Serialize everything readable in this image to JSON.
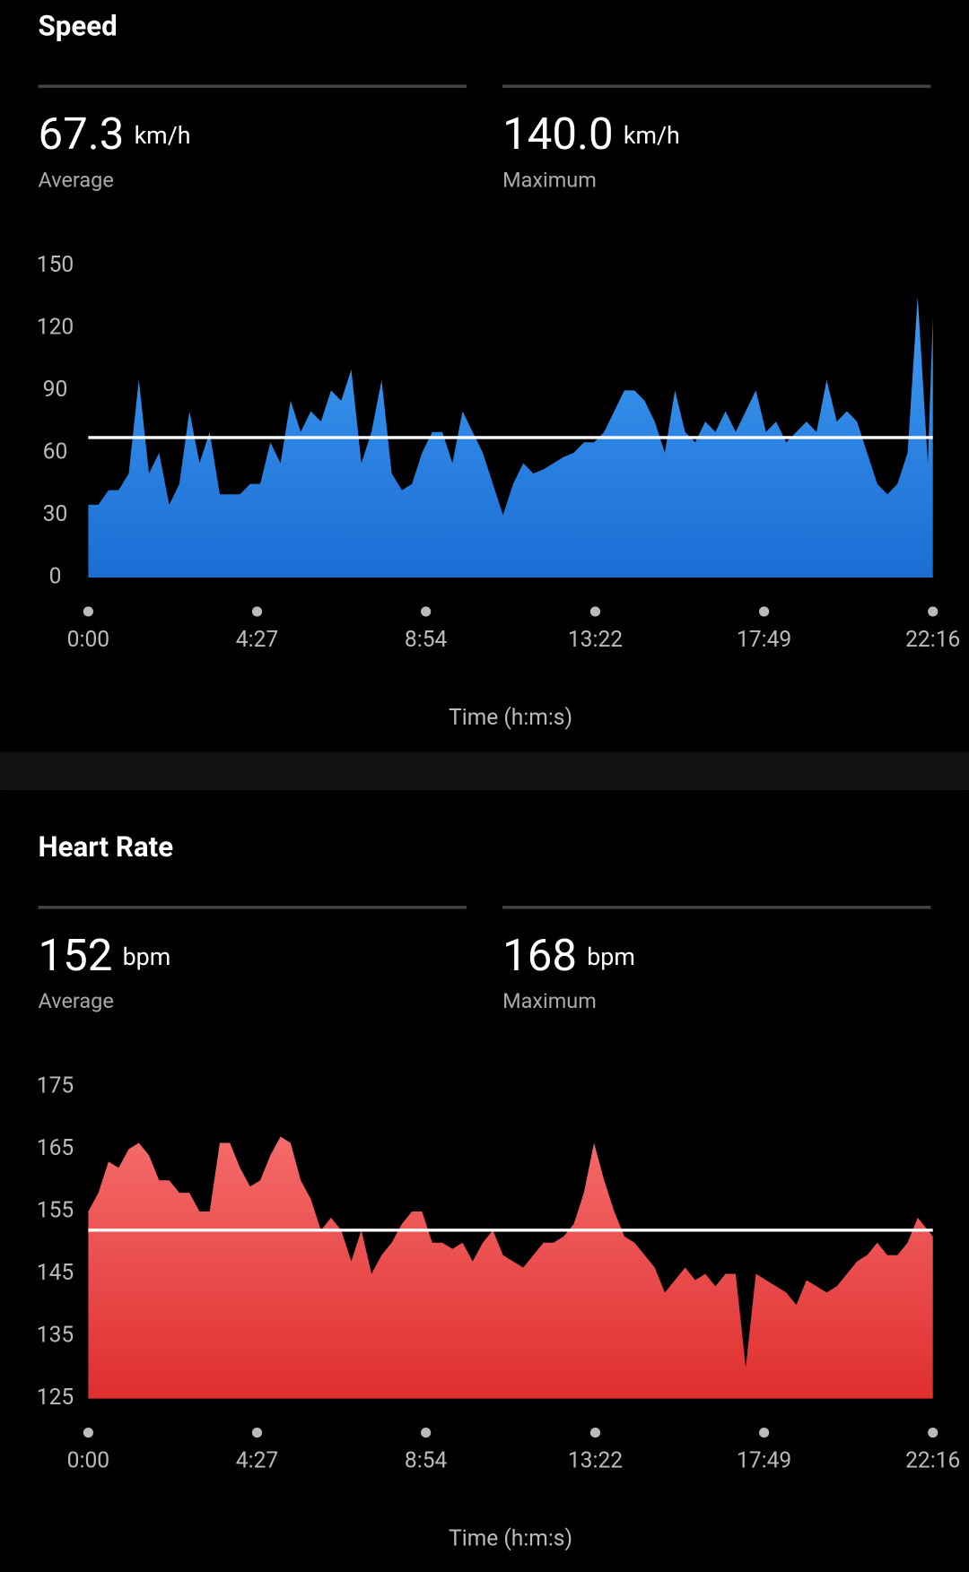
{
  "chart_data": [
    {
      "type": "area",
      "title": "Speed",
      "stats": [
        {
          "value": 67.3,
          "unit": "km/h",
          "label": "Average"
        },
        {
          "value": 140,
          "value_label": "140.0",
          "unit": "km/h",
          "label": "Maximum"
        }
      ],
      "xlabel": "Time (h:m:s)",
      "x": [
        0,
        16,
        32,
        48,
        64,
        80,
        96,
        112,
        128,
        144,
        160,
        176,
        192,
        208,
        224,
        240,
        256,
        272,
        288,
        304,
        320,
        336,
        352,
        368,
        384,
        400,
        416,
        432,
        448,
        464,
        480,
        496,
        512,
        528,
        544,
        560,
        576,
        592,
        608,
        624,
        640,
        656,
        672,
        688,
        704,
        720,
        736,
        752,
        768,
        784,
        800,
        816,
        832,
        848,
        864,
        880,
        896,
        912,
        928,
        944,
        960,
        976,
        992,
        1008,
        1024,
        1040,
        1056,
        1072,
        1088,
        1104,
        1120,
        1136,
        1152,
        1168,
        1184,
        1200,
        1216,
        1232,
        1248,
        1264,
        1280,
        1296,
        1312,
        1328,
        1336
      ],
      "values": [
        35,
        35,
        42,
        42,
        50,
        95,
        50,
        60,
        35,
        45,
        80,
        55,
        70,
        40,
        40,
        40,
        45,
        45,
        65,
        55,
        85,
        70,
        80,
        75,
        90,
        85,
        100,
        55,
        70,
        95,
        50,
        42,
        45,
        60,
        70,
        70,
        55,
        80,
        70,
        60,
        45,
        30,
        45,
        55,
        50,
        52,
        55,
        58,
        60,
        65,
        65,
        70,
        80,
        90,
        90,
        85,
        75,
        60,
        90,
        70,
        65,
        75,
        70,
        80,
        70,
        80,
        90,
        70,
        75,
        65,
        70,
        75,
        70,
        95,
        75,
        80,
        75,
        60,
        45,
        40,
        45,
        60,
        135,
        55,
        125
      ],
      "color_top": "#3f9cf2",
      "color_bottom": "#1b6dd4",
      "xlim": [
        0,
        1336
      ],
      "ylim": [
        0,
        150
      ],
      "yticks": [
        0,
        30,
        60,
        90,
        120,
        150
      ],
      "xticks": [
        {
          "value": 0,
          "label": "0:00"
        },
        {
          "value": 267,
          "label": "4:27"
        },
        {
          "value": 534,
          "label": "8:54"
        },
        {
          "value": 802,
          "label": "13:22"
        },
        {
          "value": 1069,
          "label": "17:49"
        },
        {
          "value": 1336,
          "label": "22:16"
        }
      ]
    },
    {
      "type": "area",
      "title": "Heart Rate",
      "stats": [
        {
          "value": 152,
          "unit": "bpm",
          "label": "Average"
        },
        {
          "value": 168,
          "unit": "bpm",
          "label": "Maximum"
        }
      ],
      "xlabel": "Time (h:m:s)",
      "x": [
        0,
        16,
        32,
        48,
        64,
        80,
        96,
        112,
        128,
        144,
        160,
        176,
        192,
        208,
        224,
        240,
        256,
        272,
        288,
        304,
        320,
        336,
        352,
        368,
        384,
        400,
        416,
        432,
        448,
        464,
        480,
        496,
        512,
        528,
        544,
        560,
        576,
        592,
        608,
        624,
        640,
        656,
        672,
        688,
        704,
        720,
        736,
        752,
        768,
        784,
        800,
        816,
        832,
        848,
        864,
        880,
        896,
        912,
        928,
        944,
        960,
        976,
        992,
        1008,
        1024,
        1040,
        1056,
        1072,
        1088,
        1104,
        1120,
        1136,
        1152,
        1168,
        1184,
        1200,
        1216,
        1232,
        1248,
        1264,
        1280,
        1296,
        1312,
        1328,
        1336
      ],
      "values": [
        155,
        158,
        163,
        162,
        165,
        166,
        164,
        160,
        160,
        158,
        158,
        155,
        155,
        166,
        166,
        162,
        159,
        160,
        164,
        167,
        166,
        160,
        157,
        152,
        154,
        152,
        147,
        152,
        145,
        148,
        150,
        153,
        155,
        155,
        150,
        150,
        149,
        150,
        147,
        150,
        152,
        148,
        147,
        146,
        148,
        150,
        150,
        151,
        153,
        158,
        166,
        160,
        155,
        151,
        150,
        148,
        146,
        142,
        144,
        146,
        144,
        145,
        143,
        145,
        145,
        130,
        145,
        144,
        143,
        142,
        140,
        144,
        143,
        142,
        143,
        145,
        147,
        148,
        150,
        148,
        148,
        150,
        154,
        152,
        151
      ],
      "color_top": "#f56b6b",
      "color_bottom": "#df2e2e",
      "xlim": [
        0,
        1336
      ],
      "ylim": [
        125,
        175
      ],
      "yticks": [
        125,
        135,
        145,
        155,
        165,
        175
      ],
      "xticks": [
        {
          "value": 0,
          "label": "0:00"
        },
        {
          "value": 267,
          "label": "4:27"
        },
        {
          "value": 534,
          "label": "8:54"
        },
        {
          "value": 802,
          "label": "13:22"
        },
        {
          "value": 1069,
          "label": "17:49"
        },
        {
          "value": 1336,
          "label": "22:16"
        }
      ]
    }
  ]
}
